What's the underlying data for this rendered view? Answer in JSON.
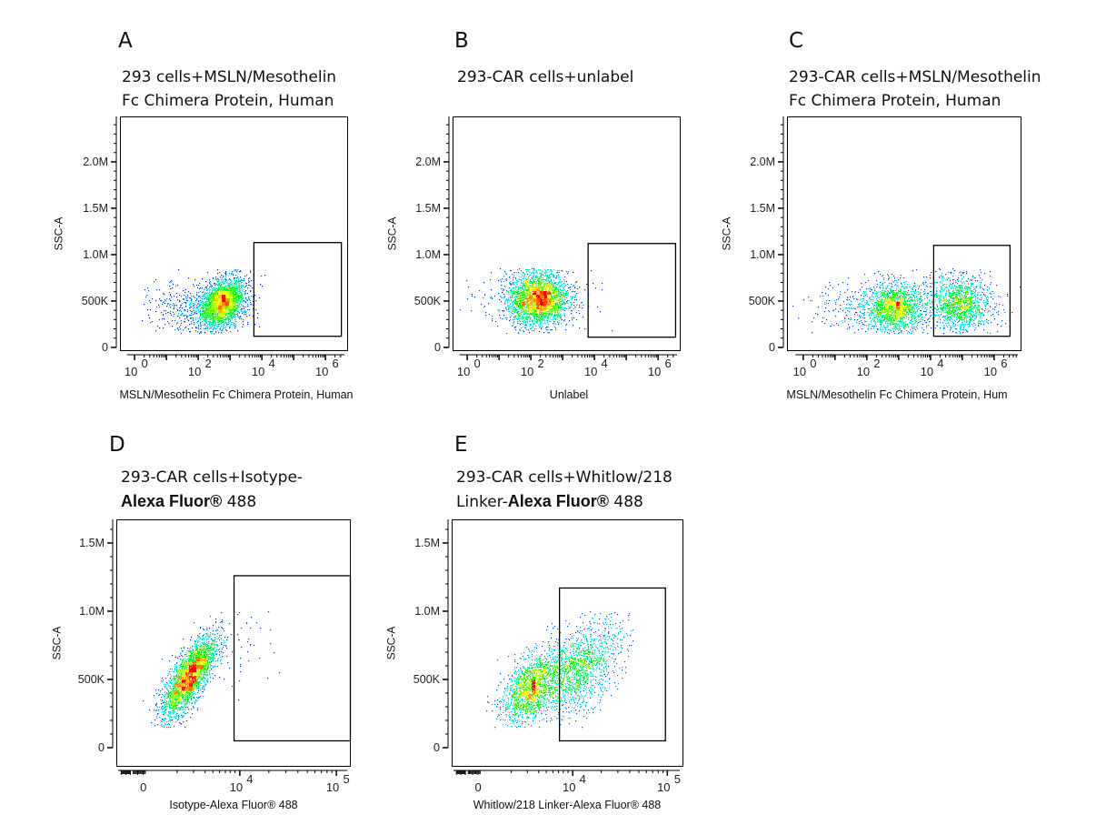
{
  "chart_data": [
    {
      "id": "A",
      "type": "scatter",
      "panel_label": "A",
      "title_lines": [
        [
          {
            "text": "293 cells+MSLN/Mesothelin",
            "bold": false
          }
        ],
        [
          {
            "text": "Fc Chimera Protein, Human",
            "bold": false
          }
        ]
      ],
      "xlabel": "MSLN/Mesothelin Fc Chimera Protein, Human",
      "ylabel": "SSC-A",
      "xscale": "log10",
      "xlim": [
        -0.46,
        6.71
      ],
      "ylim": [
        -40000,
        2490000
      ],
      "xticks": [
        {
          "pos": 0,
          "base": "10",
          "exp": "0"
        },
        {
          "pos": 2,
          "base": "10",
          "exp": "2"
        },
        {
          "pos": 4,
          "base": "10",
          "exp": "4"
        },
        {
          "pos": 6,
          "base": "10",
          "exp": "6"
        }
      ],
      "yticks": [
        {
          "value": 0,
          "label": "0"
        },
        {
          "value": 500000,
          "label": "500K"
        },
        {
          "value": 1000000,
          "label": "1.0M"
        },
        {
          "value": 1500000,
          "label": "1.5M"
        },
        {
          "value": 2000000,
          "label": "2.0M"
        }
      ],
      "ymax_events": 850000,
      "gate": {
        "x": [
          3.75,
          6.5
        ],
        "y": [
          120000,
          1130000
        ]
      },
      "clusters": [
        {
          "n": 2600,
          "x": 2.75,
          "y": 480000,
          "sx": 0.35,
          "sy": 130000,
          "rho": 0.3
        },
        {
          "n": 450,
          "x": 1.9,
          "y": 420000,
          "sx": 0.7,
          "sy": 140000,
          "rho": 0
        }
      ]
    },
    {
      "id": "B",
      "type": "scatter",
      "panel_label": "B",
      "title_lines": [
        [
          {
            "text": "293-CAR cells+unlabel",
            "bold": false
          }
        ]
      ],
      "xlabel": "Unlabel",
      "ylabel": "SSC-A",
      "xscale": "log10",
      "xlim": [
        -0.46,
        6.71
      ],
      "ylim": [
        -40000,
        2490000
      ],
      "xticks": [
        {
          "pos": 0,
          "base": "10",
          "exp": "0"
        },
        {
          "pos": 2,
          "base": "10",
          "exp": "2"
        },
        {
          "pos": 4,
          "base": "10",
          "exp": "4"
        },
        {
          "pos": 6,
          "base": "10",
          "exp": "6"
        }
      ],
      "yticks": [
        {
          "value": 0,
          "label": "0"
        },
        {
          "value": 500000,
          "label": "500K"
        },
        {
          "value": 1000000,
          "label": "1.0M"
        },
        {
          "value": 1500000,
          "label": "1.5M"
        },
        {
          "value": 2000000,
          "label": "2.0M"
        }
      ],
      "ymax_events": 850000,
      "gate": {
        "x": [
          3.8,
          6.55
        ],
        "y": [
          110000,
          1120000
        ]
      },
      "clusters": [
        {
          "n": 2600,
          "x": 2.25,
          "y": 520000,
          "sx": 0.45,
          "sy": 140000,
          "rho": 0
        },
        {
          "n": 400,
          "x": 2.0,
          "y": 480000,
          "sx": 0.8,
          "sy": 170000,
          "rho": 0
        }
      ]
    },
    {
      "id": "C",
      "type": "scatter",
      "panel_label": "C",
      "title_lines": [
        [
          {
            "text": "293-CAR cells+MSLN/Mesothelin",
            "bold": false
          }
        ],
        [
          {
            "text": "Fc Chimera Protein, Human",
            "bold": false
          }
        ]
      ],
      "xlabel": "MSLN/Mesothelin Fc Chimera Protein, Hum",
      "ylabel": "SSC-A",
      "xscale": "log10",
      "xlim": [
        -0.51,
        6.86
      ],
      "ylim": [
        -40000,
        2490000
      ],
      "xticks": [
        {
          "pos": 0,
          "base": "10",
          "exp": "0"
        },
        {
          "pos": 2,
          "base": "10",
          "exp": "2"
        },
        {
          "pos": 4,
          "base": "10",
          "exp": "4"
        },
        {
          "pos": 6,
          "base": "10",
          "exp": "6"
        }
      ],
      "yticks": [
        {
          "value": 0,
          "label": "0"
        },
        {
          "value": 500000,
          "label": "500K"
        },
        {
          "value": 1000000,
          "label": "1.0M"
        },
        {
          "value": 1500000,
          "label": "1.5M"
        },
        {
          "value": 2000000,
          "label": "2.0M"
        }
      ],
      "ymax_events": 850000,
      "gate": {
        "x": [
          4.1,
          6.5
        ],
        "y": [
          120000,
          1100000
        ]
      },
      "clusters": [
        {
          "n": 1500,
          "x": 2.9,
          "y": 430000,
          "sx": 0.45,
          "sy": 130000,
          "rho": 0
        },
        {
          "n": 1400,
          "x": 4.9,
          "y": 470000,
          "sx": 0.5,
          "sy": 150000,
          "rho": 0
        },
        {
          "n": 350,
          "x": 2.0,
          "y": 420000,
          "sx": 0.8,
          "sy": 150000,
          "rho": 0
        }
      ]
    },
    {
      "id": "D",
      "type": "scatter",
      "panel_label": "D",
      "title_lines": [
        [
          {
            "text": "293-CAR  cells+Isotype-",
            "bold": false
          }
        ],
        [
          {
            "text": "Alexa Fluor®",
            "bold": true
          },
          {
            "text": " 488",
            "bold": false
          }
        ]
      ],
      "xlabel": "Isotype-Alexa Fluor® 488",
      "ylabel": "SSC-A",
      "xscale": "biexponential (axis units: 3 = 0, 4 = 10^4, 5 = 10^5)",
      "xlim": [
        2.72,
        5.15
      ],
      "ylim": [
        -140000,
        1673000
      ],
      "xticks": [
        {
          "pos": 3,
          "base": "0",
          "exp": ""
        },
        {
          "pos": 4,
          "base": "10",
          "exp": "4"
        },
        {
          "pos": 5,
          "base": "10",
          "exp": "5"
        }
      ],
      "yticks": [
        {
          "value": 0,
          "label": "0"
        },
        {
          "value": 500000,
          "label": "500K"
        },
        {
          "value": 1000000,
          "label": "1.0M"
        },
        {
          "value": 1500000,
          "label": "1.5M"
        }
      ],
      "ymax_events": 1000000,
      "gate": {
        "x": [
          3.94,
          5.15
        ],
        "y": [
          50000,
          1260000
        ]
      },
      "clusters": [
        {
          "n": 2800,
          "x": 3.47,
          "y": 520000,
          "sx": 0.14,
          "sy": 150000,
          "rho": 0.75
        },
        {
          "n": 40,
          "x": 4.05,
          "y": 750000,
          "sx": 0.15,
          "sy": 150000,
          "rho": 0
        }
      ]
    },
    {
      "id": "E",
      "type": "scatter",
      "panel_label": "E",
      "title_lines": [
        [
          {
            "text": "293-CAR cells+Whitlow/218",
            "bold": false
          }
        ],
        [
          {
            "text": "Linker-",
            "bold": false
          },
          {
            "text": "Alexa Fluor®",
            "bold": true
          },
          {
            "text": " 488",
            "bold": false
          }
        ]
      ],
      "xlabel": "Whitlow/218 Linker-Alexa Fluor® 488",
      "ylabel": "SSC-A",
      "xscale": "biexponential (axis units: 3 = 0, 4 = 10^4, 5 = 10^5)",
      "xlim": [
        2.72,
        5.17
      ],
      "ylim": [
        -140000,
        1673000
      ],
      "xticks": [
        {
          "pos": 3,
          "base": "0",
          "exp": ""
        },
        {
          "pos": 4,
          "base": "10",
          "exp": "4"
        },
        {
          "pos": 5,
          "base": "10",
          "exp": "5"
        }
      ],
      "yticks": [
        {
          "value": 0,
          "label": "0"
        },
        {
          "value": 500000,
          "label": "500K"
        },
        {
          "value": 1000000,
          "label": "1.0M"
        },
        {
          "value": 1500000,
          "label": "1.5M"
        }
      ],
      "ymax_events": 1000000,
      "gate": {
        "x": [
          3.86,
          4.98
        ],
        "y": [
          50000,
          1170000
        ]
      },
      "clusters": [
        {
          "n": 1500,
          "x": 3.55,
          "y": 440000,
          "sx": 0.15,
          "sy": 130000,
          "rho": 0.5
        },
        {
          "n": 1500,
          "x": 4.05,
          "y": 570000,
          "sx": 0.22,
          "sy": 170000,
          "rho": 0.5
        }
      ]
    }
  ],
  "colors": {
    "low": "#0000ff",
    "mid1": "#00ffff",
    "mid2": "#00ff00",
    "mid3": "#ffff00",
    "high": "#ff0000",
    "axis": "#000000"
  }
}
